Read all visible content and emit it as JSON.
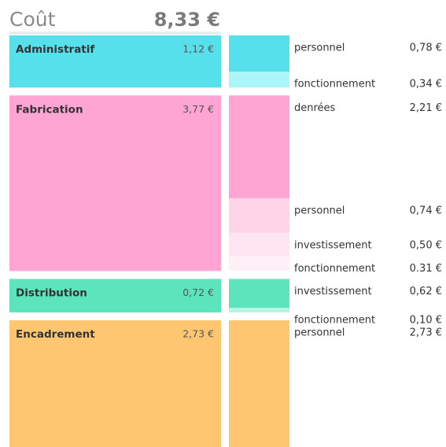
{
  "chart_data": {
    "type": "cost_breakdown",
    "title": "Coût",
    "total": 8.33,
    "total_label": "8,33 €",
    "groups": [
      {
        "name": "Administratif",
        "color": "#55e0ec",
        "value": 1.12,
        "value_label": "1,12 €",
        "items": [
          {
            "name": "personnel",
            "color": "#55e0ec",
            "value": 0.78,
            "value_label": "0,78 €"
          },
          {
            "name": "fonctionnement",
            "color": "#aaf6f8",
            "value": 0.34,
            "value_label": "0,34 €"
          }
        ]
      },
      {
        "name": "Fabrication",
        "color": "#ffa5d3",
        "value": 3.77,
        "value_label": "3,77 €",
        "items": [
          {
            "name": "denrées",
            "color": "#ffa5d3",
            "value": 2.21,
            "value_label": "2,21 €"
          },
          {
            "name": "personnel",
            "color": "#ffd4e9",
            "value": 0.74,
            "value_label": "0,74 €"
          },
          {
            "name": "investissement",
            "color": "#ffe4f1",
            "value": 0.5,
            "value_label": "0,50 €"
          },
          {
            "name": "fonctionnement",
            "color": "#fff0f7",
            "value": 0.31,
            "value_label": "0.31 €"
          }
        ]
      },
      {
        "name": "Distribution",
        "color": "#5ce5bd",
        "value": 0.72,
        "value_label": "0,72 €",
        "items": [
          {
            "name": "investissement",
            "color": "#5ce5bd",
            "value": 0.62,
            "value_label": "0,62 €"
          },
          {
            "name": "fonctionnement",
            "color": "#b4f4e1",
            "value": 0.1,
            "value_label": "0,10 €"
          }
        ]
      },
      {
        "name": "Encadrement",
        "color": "#ffc672",
        "value": 2.73,
        "value_label": "2,73 €",
        "items": [
          {
            "name": "personnel",
            "color": "#ffc672",
            "value": 2.73,
            "value_label": "2,73 €"
          }
        ]
      }
    ]
  }
}
